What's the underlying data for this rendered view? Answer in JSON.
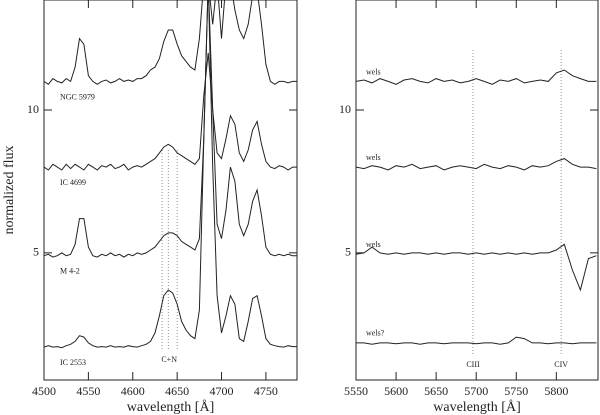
{
  "chart_data": [
    {
      "type": "line",
      "xlabel": "wavelength [Å]",
      "ylabel": "normalized flux",
      "xlim": [
        4500,
        4785
      ],
      "ylim": [
        0.55,
        13.85
      ],
      "xticks": [
        4500,
        4550,
        4600,
        4650,
        4700,
        4750
      ],
      "yticks": [
        5,
        10
      ],
      "x": [
        4500,
        4505,
        4510,
        4515,
        4520,
        4525,
        4530,
        4535,
        4540,
        4545,
        4550,
        4555,
        4560,
        4565,
        4570,
        4575,
        4580,
        4585,
        4590,
        4595,
        4600,
        4605,
        4610,
        4615,
        4620,
        4625,
        4630,
        4635,
        4640,
        4645,
        4650,
        4655,
        4660,
        4665,
        4670,
        4675,
        4680,
        4685,
        4690,
        4695,
        4700,
        4705,
        4710,
        4715,
        4720,
        4725,
        4730,
        4735,
        4740,
        4745,
        4750,
        4755,
        4760,
        4765,
        4770,
        4775,
        4780,
        4785
      ],
      "series": [
        {
          "name": "NGC 5979",
          "color": "#222222",
          "values": [
            11.0,
            10.9,
            11.1,
            11.0,
            10.95,
            11.1,
            11.0,
            11.5,
            12.5,
            12.3,
            11.2,
            11.0,
            10.9,
            11.0,
            11.05,
            10.95,
            11.0,
            11.1,
            11.0,
            11.05,
            11.0,
            11.1,
            11.1,
            11.2,
            11.4,
            11.5,
            11.8,
            12.4,
            12.8,
            12.8,
            12.3,
            11.9,
            11.7,
            11.5,
            11.4,
            12.5,
            14.5,
            14.5,
            13.0,
            14.5,
            12.5,
            14.5,
            14.5,
            13.5,
            12.8,
            12.5,
            13.0,
            14.0,
            14.2,
            13.0,
            11.6,
            11.0,
            10.9,
            11.0,
            11.0,
            10.95,
            11.0,
            11.0
          ]
        },
        {
          "name": "IC 4699",
          "color": "#222222",
          "values": [
            8.0,
            7.9,
            8.1,
            8.0,
            7.9,
            8.1,
            7.95,
            8.1,
            8.0,
            7.9,
            8.1,
            8.0,
            7.9,
            8.05,
            8.0,
            8.1,
            7.95,
            8.0,
            8.1,
            7.9,
            8.0,
            8.05,
            8.0,
            8.1,
            8.2,
            8.3,
            8.5,
            8.7,
            8.8,
            8.7,
            8.5,
            8.4,
            8.3,
            8.2,
            8.1,
            8.3,
            10.5,
            12.0,
            10.0,
            8.5,
            8.3,
            9.0,
            9.8,
            9.5,
            8.5,
            8.2,
            8.6,
            9.3,
            9.6,
            8.8,
            8.2,
            8.0,
            7.95,
            8.05,
            8.0,
            7.9,
            8.0,
            8.0
          ]
        },
        {
          "name": "M 4-2",
          "color": "#222222",
          "values": [
            4.9,
            4.95,
            4.85,
            4.9,
            5.0,
            4.9,
            4.95,
            5.3,
            6.2,
            6.2,
            5.2,
            4.9,
            4.85,
            4.95,
            4.9,
            5.0,
            4.9,
            4.95,
            4.85,
            4.95,
            4.9,
            5.0,
            4.95,
            5.0,
            5.1,
            5.2,
            5.4,
            5.6,
            5.7,
            5.7,
            5.6,
            5.4,
            5.3,
            5.2,
            5.1,
            5.5,
            9.0,
            14.5,
            10.0,
            6.0,
            5.5,
            6.5,
            8.0,
            7.5,
            6.0,
            5.6,
            6.0,
            6.8,
            7.2,
            6.3,
            5.2,
            4.95,
            4.9,
            4.95,
            4.9,
            4.95,
            4.9,
            4.9
          ]
        },
        {
          "name": "IC 2553",
          "color": "#222222",
          "values": [
            1.7,
            1.75,
            1.7,
            1.72,
            1.68,
            1.75,
            1.8,
            1.9,
            2.1,
            2.05,
            1.85,
            1.75,
            1.7,
            1.72,
            1.7,
            1.75,
            1.7,
            1.72,
            1.7,
            1.75,
            1.72,
            1.7,
            1.75,
            1.8,
            1.9,
            2.2,
            2.8,
            3.5,
            3.7,
            3.6,
            3.2,
            2.6,
            2.3,
            2.1,
            2.0,
            3.0,
            9.0,
            14.5,
            8.0,
            3.5,
            2.2,
            2.8,
            3.5,
            3.2,
            2.0,
            1.9,
            2.6,
            3.4,
            3.5,
            2.8,
            2.0,
            1.8,
            1.75,
            1.72,
            1.7,
            1.75,
            1.72,
            1.72
          ]
        }
      ],
      "vlines": [
        4633,
        4640,
        4650
      ],
      "annotation": "C+N"
    },
    {
      "type": "line",
      "xlabel": "wavelength [Å]",
      "xlim": [
        5550,
        5852
      ],
      "ylim": [
        0.55,
        13.85
      ],
      "xticks": [
        5550,
        5600,
        5650,
        5700,
        5750,
        5800
      ],
      "yticks": [
        5,
        10
      ],
      "x": [
        5550,
        5560,
        5570,
        5580,
        5590,
        5600,
        5610,
        5620,
        5630,
        5640,
        5650,
        5660,
        5670,
        5680,
        5690,
        5700,
        5710,
        5720,
        5730,
        5740,
        5750,
        5760,
        5770,
        5780,
        5790,
        5800,
        5810,
        5820,
        5830,
        5840,
        5850
      ],
      "series": [
        {
          "name": "wels",
          "color": "#222222",
          "values": [
            11.0,
            11.05,
            10.95,
            11.1,
            11.0,
            10.9,
            11.05,
            11.1,
            11.0,
            10.95,
            11.1,
            11.0,
            11.05,
            10.95,
            11.0,
            11.1,
            11.0,
            10.9,
            11.05,
            11.0,
            11.1,
            10.95,
            11.0,
            11.05,
            11.0,
            11.3,
            11.4,
            11.2,
            11.1,
            11.0,
            11.0
          ]
        },
        {
          "name": "wels",
          "color": "#222222",
          "values": [
            8.0,
            7.95,
            8.05,
            8.0,
            7.9,
            8.05,
            8.0,
            8.1,
            7.95,
            8.0,
            8.05,
            7.9,
            8.0,
            8.05,
            8.0,
            7.95,
            8.1,
            8.0,
            7.95,
            8.05,
            8.0,
            7.9,
            8.05,
            8.0,
            8.05,
            8.2,
            8.3,
            8.1,
            8.0,
            8.0,
            7.95
          ]
        },
        {
          "name": "wels",
          "color": "#222222",
          "values": [
            4.95,
            5.0,
            5.2,
            5.0,
            4.95,
            5.0,
            4.95,
            5.0,
            5.0,
            4.95,
            5.0,
            4.95,
            5.0,
            5.0,
            4.95,
            5.0,
            4.95,
            5.0,
            4.95,
            5.0,
            4.95,
            5.0,
            4.95,
            5.0,
            5.0,
            5.1,
            5.3,
            4.4,
            3.7,
            4.8,
            4.9
          ]
        },
        {
          "name": "wels?",
          "color": "#222222",
          "values": [
            1.85,
            1.85,
            1.8,
            1.85,
            1.85,
            1.82,
            1.85,
            1.85,
            1.8,
            1.85,
            1.85,
            1.82,
            1.85,
            1.85,
            1.85,
            1.82,
            1.85,
            1.85,
            1.8,
            1.85,
            2.05,
            2.0,
            1.85,
            1.85,
            1.82,
            1.85,
            1.85,
            1.82,
            1.85,
            1.85,
            1.85
          ]
        }
      ],
      "vlines": [
        {
          "x": 5696,
          "label": "CIII"
        },
        {
          "x": 5806,
          "label": "CIV"
        }
      ]
    }
  ]
}
